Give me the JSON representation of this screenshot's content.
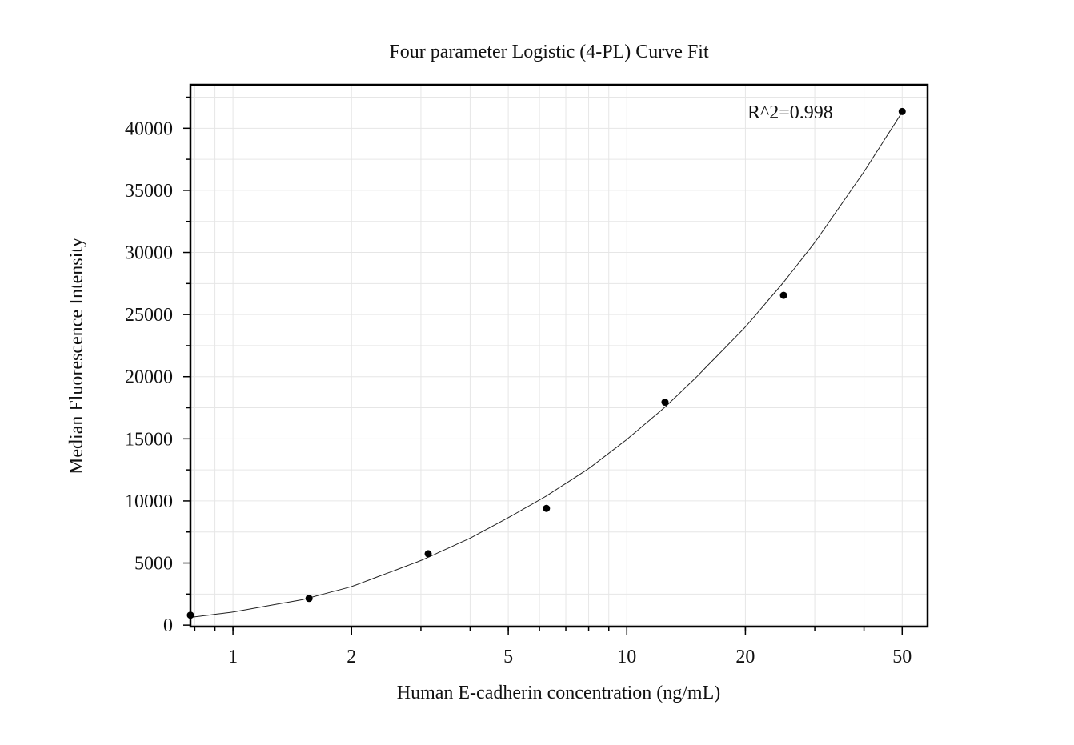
{
  "chart_data": {
    "type": "scatter",
    "title": "Four parameter Logistic (4-PL) Curve Fit",
    "xlabel": "Human E-cadherin concentration (ng/mL)",
    "ylabel": "Median Fluorescence Intensity",
    "annotation": "R^2=0.998",
    "x_scale": "log",
    "xlim": [
      0.78,
      58
    ],
    "ylim": [
      -120,
      43500
    ],
    "x_ticks": [
      1,
      2,
      5,
      10,
      20,
      50
    ],
    "x_tick_labels": [
      "1",
      "2",
      "5",
      "10",
      "20",
      "50"
    ],
    "y_ticks": [
      0,
      5000,
      10000,
      15000,
      20000,
      25000,
      30000,
      35000,
      40000
    ],
    "y_tick_labels": [
      "0",
      "5000",
      "10000",
      "15000",
      "20000",
      "25000",
      "30000",
      "35000",
      "40000"
    ],
    "grid": true,
    "points": [
      {
        "x": 0.78,
        "y": 800
      },
      {
        "x": 1.56,
        "y": 2150
      },
      {
        "x": 3.13,
        "y": 5750
      },
      {
        "x": 6.25,
        "y": 9400
      },
      {
        "x": 12.5,
        "y": 17950
      },
      {
        "x": 25,
        "y": 26550
      },
      {
        "x": 50,
        "y": 41350
      }
    ],
    "fit_curve": {
      "x": [
        0.78,
        1,
        1.5,
        2,
        3,
        4,
        5,
        6.25,
        8,
        10,
        12.5,
        15,
        20,
        25,
        30,
        40,
        50
      ],
      "y": [
        620,
        1050,
        2050,
        3100,
        5200,
        7000,
        8650,
        10400,
        12600,
        14950,
        17550,
        19950,
        24000,
        27600,
        30800,
        36500,
        41300
      ]
    }
  }
}
